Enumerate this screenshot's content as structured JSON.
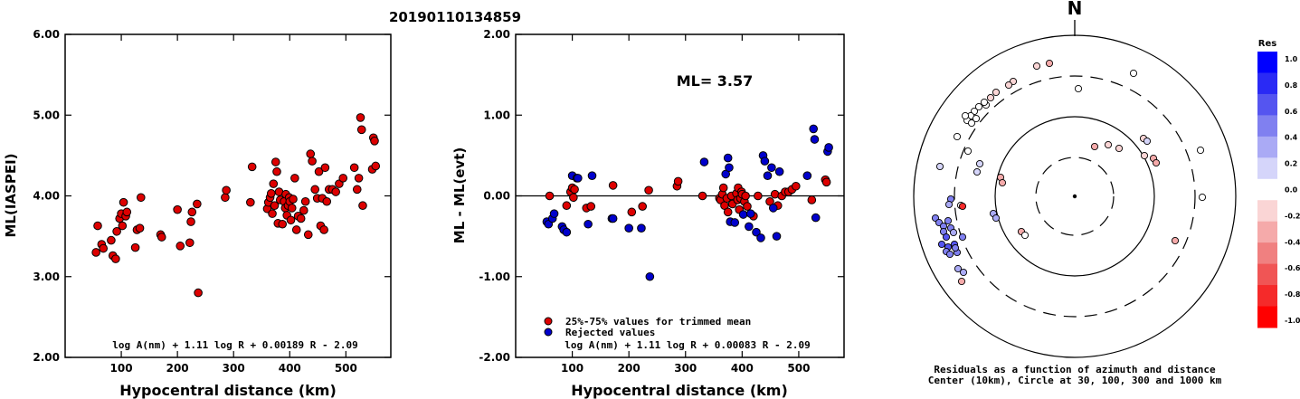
{
  "figure_title": "20190110134859",
  "chart_data": [
    {
      "type": "scatter",
      "xlabel": "Hypocentral distance (km)",
      "ylabel": "ML(IASPEI)",
      "xlim": [
        0,
        580
      ],
      "ylim": [
        2.0,
        6.0
      ],
      "xticks": [
        "100",
        "200",
        "300",
        "400",
        "500"
      ],
      "yticks": [
        "2.00",
        "3.00",
        "4.00",
        "5.00",
        "6.00"
      ],
      "formula": "log A(nm) + 1.11 log R + 0.00189 R - 2.09",
      "grid": false,
      "color": "#dd0000",
      "points": [
        [
          55,
          3.3
        ],
        [
          58,
          3.63
        ],
        [
          65,
          3.4
        ],
        [
          68,
          3.35
        ],
        [
          82,
          3.45
        ],
        [
          85,
          3.26
        ],
        [
          90,
          3.22
        ],
        [
          92,
          3.56
        ],
        [
          97,
          3.72
        ],
        [
          100,
          3.78
        ],
        [
          102,
          3.63
        ],
        [
          104,
          3.92
        ],
        [
          108,
          3.75
        ],
        [
          110,
          3.8
        ],
        [
          125,
          3.36
        ],
        [
          128,
          3.58
        ],
        [
          133,
          3.6
        ],
        [
          135,
          3.98
        ],
        [
          170,
          3.52
        ],
        [
          172,
          3.49
        ],
        [
          200,
          3.83
        ],
        [
          205,
          3.38
        ],
        [
          222,
          3.42
        ],
        [
          224,
          3.68
        ],
        [
          226,
          3.8
        ],
        [
          235,
          3.9
        ],
        [
          237,
          2.8
        ],
        [
          285,
          3.98
        ],
        [
          287,
          4.07
        ],
        [
          330,
          3.92
        ],
        [
          333,
          4.36
        ],
        [
          360,
          3.84
        ],
        [
          362,
          3.92
        ],
        [
          365,
          3.98
        ],
        [
          367,
          4.03
        ],
        [
          369,
          3.78
        ],
        [
          371,
          4.15
        ],
        [
          373,
          3.88
        ],
        [
          375,
          4.42
        ],
        [
          377,
          4.3
        ],
        [
          379,
          3.66
        ],
        [
          381,
          4.05
        ],
        [
          383,
          3.95
        ],
        [
          387,
          3.65
        ],
        [
          390,
          3.93
        ],
        [
          392,
          3.85
        ],
        [
          393,
          4.02
        ],
        [
          395,
          3.76
        ],
        [
          397,
          3.88
        ],
        [
          399,
          3.98
        ],
        [
          400,
          3.93
        ],
        [
          402,
          3.7
        ],
        [
          404,
          3.85
        ],
        [
          406,
          3.96
        ],
        [
          409,
          4.22
        ],
        [
          412,
          3.58
        ],
        [
          415,
          3.75
        ],
        [
          420,
          3.72
        ],
        [
          425,
          3.82
        ],
        [
          428,
          3.93
        ],
        [
          433,
          3.52
        ],
        [
          437,
          4.52
        ],
        [
          440,
          4.43
        ],
        [
          445,
          4.08
        ],
        [
          449,
          3.97
        ],
        [
          452,
          4.3
        ],
        [
          455,
          3.63
        ],
        [
          458,
          3.97
        ],
        [
          461,
          3.58
        ],
        [
          463,
          4.35
        ],
        [
          466,
          3.93
        ],
        [
          470,
          4.08
        ],
        [
          476,
          4.08
        ],
        [
          482,
          4.05
        ],
        [
          488,
          4.15
        ],
        [
          495,
          4.22
        ],
        [
          515,
          4.35
        ],
        [
          520,
          4.08
        ],
        [
          523,
          4.22
        ],
        [
          526,
          4.97
        ],
        [
          528,
          4.82
        ],
        [
          530,
          3.88
        ],
        [
          547,
          4.33
        ],
        [
          549,
          4.72
        ],
        [
          551,
          4.68
        ],
        [
          553,
          4.37
        ]
      ]
    },
    {
      "type": "scatter",
      "xlabel": "Hypocentral distance (km)",
      "ylabel": "ML - ML(evt)",
      "xlim": [
        0,
        580
      ],
      "ylim": [
        -2.0,
        2.0
      ],
      "xticks": [
        "100",
        "200",
        "300",
        "400",
        "500"
      ],
      "yticks": [
        "-2.00",
        "-1.00",
        "0.00",
        "1.00",
        "2.00"
      ],
      "annotation": "ML= 3.57",
      "formula": "log A(nm) + 1.11 log R + 0.00083 R - 2.09",
      "grid": false,
      "reference_line": 0,
      "legend": [
        {
          "label": "25%-75% values for trimmed mean",
          "color": "#dd0000"
        },
        {
          "label": "Rejected values",
          "color": "#0000cc"
        }
      ],
      "series": [
        {
          "name": "25%-75% values for trimmed mean",
          "color": "#dd0000",
          "points": [
            [
              60,
              0.0
            ],
            [
              90,
              -0.12
            ],
            [
              97,
              0.05
            ],
            [
              100,
              0.1
            ],
            [
              102,
              -0.02
            ],
            [
              104,
              0.08
            ],
            [
              125,
              -0.15
            ],
            [
              133,
              -0.13
            ],
            [
              172,
              0.13
            ],
            [
              205,
              -0.2
            ],
            [
              224,
              -0.13
            ],
            [
              235,
              0.07
            ],
            [
              285,
              0.12
            ],
            [
              287,
              0.18
            ],
            [
              330,
              0.0
            ],
            [
              360,
              -0.03
            ],
            [
              362,
              -0.05
            ],
            [
              365,
              0.02
            ],
            [
              367,
              0.1
            ],
            [
              369,
              -0.12
            ],
            [
              373,
              -0.03
            ],
            [
              375,
              -0.2
            ],
            [
              381,
              0.0
            ],
            [
              383,
              -0.1
            ],
            [
              390,
              0.03
            ],
            [
              392,
              -0.05
            ],
            [
              393,
              0.1
            ],
            [
              395,
              -0.17
            ],
            [
              397,
              -0.03
            ],
            [
              399,
              0.05
            ],
            [
              400,
              0.02
            ],
            [
              404,
              -0.07
            ],
            [
              406,
              0.0
            ],
            [
              409,
              -0.13
            ],
            [
              420,
              -0.25
            ],
            [
              428,
              0.0
            ],
            [
              449,
              -0.07
            ],
            [
              458,
              0.02
            ],
            [
              463,
              -0.12
            ],
            [
              470,
              0.0
            ],
            [
              476,
              0.05
            ],
            [
              482,
              0.05
            ],
            [
              488,
              0.08
            ],
            [
              495,
              0.12
            ],
            [
              523,
              -0.05
            ],
            [
              547,
              0.2
            ],
            [
              549,
              0.17
            ]
          ]
        },
        {
          "name": "Rejected values",
          "color": "#0000cc",
          "points": [
            [
              55,
              -0.32
            ],
            [
              58,
              -0.35
            ],
            [
              65,
              -0.28
            ],
            [
              68,
              -0.22
            ],
            [
              82,
              -0.38
            ],
            [
              85,
              -0.42
            ],
            [
              90,
              -0.45
            ],
            [
              100,
              0.25
            ],
            [
              108,
              0.22
            ],
            [
              110,
              0.22
            ],
            [
              128,
              -0.35
            ],
            [
              135,
              0.25
            ],
            [
              170,
              -0.28
            ],
            [
              172,
              -0.28
            ],
            [
              200,
              -0.4
            ],
            [
              222,
              -0.4
            ],
            [
              237,
              -1.0
            ],
            [
              333,
              0.42
            ],
            [
              371,
              0.27
            ],
            [
              375,
              0.47
            ],
            [
              377,
              0.35
            ],
            [
              379,
              -0.32
            ],
            [
              387,
              -0.33
            ],
            [
              402,
              -0.23
            ],
            [
              412,
              -0.38
            ],
            [
              415,
              -0.22
            ],
            [
              425,
              -0.45
            ],
            [
              433,
              -0.52
            ],
            [
              437,
              0.5
            ],
            [
              440,
              0.43
            ],
            [
              445,
              0.25
            ],
            [
              452,
              0.35
            ],
            [
              455,
              -0.15
            ],
            [
              461,
              -0.5
            ],
            [
              466,
              0.3
            ],
            [
              515,
              0.25
            ],
            [
              526,
              0.83
            ],
            [
              528,
              0.7
            ],
            [
              530,
              -0.27
            ],
            [
              551,
              0.55
            ],
            [
              553,
              0.6
            ]
          ]
        }
      ]
    },
    {
      "type": "polar-scatter",
      "north_label": "N",
      "caption_line1": "Residuals as a function of azimuth and distance",
      "caption_line2": "Center (10km), Circle at 30, 100, 300 and 1000 km",
      "colorbar": {
        "title": "Res",
        "ticks": [
          "1.0",
          "0.8",
          "0.6",
          "0.4",
          "0.2",
          "0.0",
          "-0.2",
          "-0.4",
          "-0.6",
          "-0.8",
          "-1.0"
        ],
        "stops": [
          "#0000ff",
          "#2a2af5",
          "#5555f0",
          "#8080f0",
          "#aaaaf5",
          "#d5d5fa",
          "#ffffff",
          "#fad5d5",
          "#f5aaaa",
          "#f08080",
          "#f05555",
          "#f52a2a",
          "#ff0000"
        ]
      },
      "stations": [
        [
          1146,
          73,
          -0.1
        ],
        [
          1160,
          70,
          -0.25
        ],
        [
          1192,
          98,
          0.05
        ],
        [
          1253,
          81,
          0.03
        ],
        [
          1120,
          90,
          -0.1
        ],
        [
          1115,
          94,
          -0.2
        ],
        [
          1101,
          102,
          -0.2
        ],
        [
          1095,
          108,
          -0.15
        ],
        [
          1090,
          116,
          0.05
        ],
        [
          1088,
          113,
          0.0
        ],
        [
          1082,
          118,
          0.0
        ],
        [
          1077,
          123,
          0.0
        ],
        [
          1073,
          128,
          0.0
        ],
        [
          1069,
          133,
          0.05
        ],
        [
          1074,
          136,
          0.02
        ],
        [
          1067,
          128,
          0.0
        ],
        [
          1079,
          131,
          0.0
        ],
        [
          1058,
          151,
          0.0
        ],
        [
          1070,
          167,
          -0.05
        ],
        [
          1083,
          181,
          0.2
        ],
        [
          1080,
          190,
          0.2
        ],
        [
          1039,
          184,
          0.25
        ],
        [
          1106,
          196,
          -0.3
        ],
        [
          1108,
          202,
          -0.3
        ],
        [
          1098,
          236,
          0.3
        ],
        [
          1101,
          241,
          0.35
        ],
        [
          1129,
          256,
          -0.25
        ],
        [
          1133,
          260,
          0.0
        ],
        [
          1051,
          220,
          0.5
        ],
        [
          1049,
          226,
          0.4
        ],
        [
          1062,
          227,
          0.0
        ],
        [
          1064,
          228,
          -0.9
        ],
        [
          1034,
          241,
          0.5
        ],
        [
          1038,
          246,
          0.5
        ],
        [
          1043,
          250,
          0.5
        ],
        [
          1048,
          244,
          0.5
        ],
        [
          1051,
          252,
          0.5
        ],
        [
          1043,
          256,
          0.5
        ],
        [
          1054,
          257,
          0.4
        ],
        [
          1046,
          262,
          0.6
        ],
        [
          1041,
          270,
          0.6
        ],
        [
          1048,
          273,
          0.6
        ],
        [
          1055,
          270,
          0.6
        ],
        [
          1046,
          278,
          0.5
        ],
        [
          1058,
          279,
          0.5
        ],
        [
          1050,
          281,
          0.5
        ],
        [
          1056,
          274,
          0.5
        ],
        [
          1064,
          262,
          0.5
        ],
        [
          1059,
          297,
          0.4
        ],
        [
          1065,
          301,
          0.4
        ],
        [
          1063,
          311,
          -0.25
        ],
        [
          1210,
          162,
          -0.3
        ],
        [
          1225,
          160,
          -0.2
        ],
        [
          1237,
          164,
          -0.1
        ],
        [
          1264,
          153,
          -0.15
        ],
        [
          1268,
          156,
          0.2
        ],
        [
          1265,
          172,
          -0.1
        ],
        [
          1275,
          175,
          -0.3
        ],
        [
          1278,
          180,
          -0.3
        ],
        [
          1327,
          166,
          -0.05
        ],
        [
          1329,
          218,
          0.0
        ],
        [
          1299,
          266,
          -0.3
        ]
      ]
    }
  ]
}
